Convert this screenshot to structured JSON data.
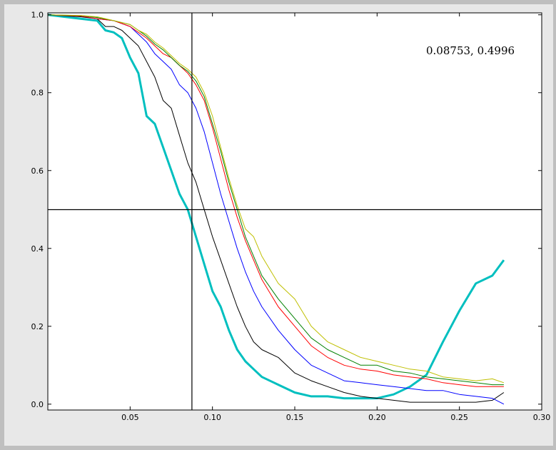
{
  "readout": "0.08753, 0.4996",
  "chart_data": {
    "type": "line",
    "xlim": [
      0.0,
      0.3
    ],
    "ylim": [
      -0.015,
      1.005
    ],
    "x_ticks": [
      0.05,
      0.1,
      0.15,
      0.2,
      0.25,
      0.3
    ],
    "y_ticks": [
      0.0,
      0.2,
      0.4,
      0.6,
      0.8,
      1.0
    ],
    "x_tick_labels": [
      "0.05",
      "0.10",
      "0.15",
      "0.20",
      "0.25",
      "0.30"
    ],
    "y_tick_labels": [
      "0.0",
      "0.2",
      "0.4",
      "0.6",
      "0.8",
      "1.0"
    ],
    "grid": false,
    "crosshair": {
      "x": 0.08753,
      "y": 0.4996
    },
    "series": [
      {
        "color": "#00bfbf",
        "width": 3,
        "x": [
          0.0,
          0.02,
          0.03,
          0.035,
          0.04,
          0.045,
          0.05,
          0.055,
          0.06,
          0.065,
          0.07,
          0.075,
          0.08,
          0.085,
          0.09,
          0.095,
          0.1,
          0.105,
          0.11,
          0.115,
          0.12,
          0.125,
          0.13,
          0.14,
          0.15,
          0.16,
          0.17,
          0.18,
          0.19,
          0.2,
          0.21,
          0.22,
          0.23,
          0.24,
          0.25,
          0.26,
          0.27,
          0.277
        ],
        "y": [
          1.0,
          0.99,
          0.985,
          0.96,
          0.955,
          0.94,
          0.89,
          0.85,
          0.74,
          0.72,
          0.66,
          0.6,
          0.54,
          0.5,
          0.43,
          0.36,
          0.29,
          0.25,
          0.19,
          0.14,
          0.11,
          0.09,
          0.07,
          0.05,
          0.03,
          0.02,
          0.02,
          0.015,
          0.015,
          0.015,
          0.025,
          0.045,
          0.075,
          0.16,
          0.24,
          0.31,
          0.33,
          0.37
        ]
      },
      {
        "color": "#000000",
        "width": 1,
        "x": [
          0.0,
          0.02,
          0.03,
          0.035,
          0.04,
          0.045,
          0.05,
          0.055,
          0.06,
          0.065,
          0.07,
          0.075,
          0.08,
          0.085,
          0.09,
          0.095,
          0.1,
          0.105,
          0.11,
          0.115,
          0.12,
          0.125,
          0.13,
          0.14,
          0.15,
          0.16,
          0.17,
          0.18,
          0.19,
          0.2,
          0.21,
          0.22,
          0.23,
          0.24,
          0.25,
          0.26,
          0.27,
          0.277
        ],
        "y": [
          1.0,
          0.995,
          0.99,
          0.97,
          0.97,
          0.96,
          0.94,
          0.92,
          0.88,
          0.84,
          0.78,
          0.76,
          0.69,
          0.62,
          0.57,
          0.5,
          0.43,
          0.37,
          0.31,
          0.25,
          0.2,
          0.16,
          0.14,
          0.12,
          0.08,
          0.06,
          0.045,
          0.03,
          0.02,
          0.015,
          0.01,
          0.005,
          0.005,
          0.005,
          0.005,
          0.005,
          0.01,
          0.03
        ]
      },
      {
        "color": "#0000ff",
        "width": 1,
        "x": [
          0.0,
          0.02,
          0.03,
          0.04,
          0.05,
          0.055,
          0.06,
          0.065,
          0.07,
          0.075,
          0.08,
          0.085,
          0.09,
          0.095,
          0.1,
          0.105,
          0.11,
          0.115,
          0.12,
          0.125,
          0.13,
          0.14,
          0.15,
          0.16,
          0.17,
          0.18,
          0.19,
          0.2,
          0.21,
          0.22,
          0.23,
          0.24,
          0.25,
          0.26,
          0.27,
          0.277
        ],
        "y": [
          1.0,
          0.997,
          0.99,
          0.985,
          0.97,
          0.95,
          0.93,
          0.9,
          0.88,
          0.86,
          0.82,
          0.8,
          0.76,
          0.7,
          0.62,
          0.54,
          0.47,
          0.4,
          0.34,
          0.29,
          0.25,
          0.19,
          0.14,
          0.1,
          0.08,
          0.06,
          0.055,
          0.05,
          0.045,
          0.04,
          0.035,
          0.035,
          0.025,
          0.02,
          0.015,
          0.0
        ]
      },
      {
        "color": "#ff0000",
        "width": 1,
        "x": [
          0.0,
          0.02,
          0.03,
          0.04,
          0.05,
          0.055,
          0.06,
          0.065,
          0.07,
          0.075,
          0.08,
          0.085,
          0.09,
          0.095,
          0.1,
          0.105,
          0.11,
          0.115,
          0.12,
          0.125,
          0.13,
          0.14,
          0.15,
          0.16,
          0.17,
          0.18,
          0.19,
          0.2,
          0.21,
          0.22,
          0.23,
          0.24,
          0.25,
          0.26,
          0.27,
          0.277
        ],
        "y": [
          1.0,
          0.997,
          0.99,
          0.985,
          0.97,
          0.955,
          0.94,
          0.92,
          0.9,
          0.89,
          0.87,
          0.85,
          0.82,
          0.78,
          0.71,
          0.63,
          0.55,
          0.48,
          0.42,
          0.37,
          0.32,
          0.25,
          0.2,
          0.15,
          0.12,
          0.1,
          0.09,
          0.085,
          0.075,
          0.07,
          0.065,
          0.055,
          0.05,
          0.045,
          0.045,
          0.045
        ]
      },
      {
        "color": "#008000",
        "width": 1,
        "x": [
          0.0,
          0.02,
          0.03,
          0.04,
          0.05,
          0.055,
          0.06,
          0.065,
          0.07,
          0.075,
          0.08,
          0.085,
          0.09,
          0.095,
          0.1,
          0.105,
          0.11,
          0.115,
          0.12,
          0.125,
          0.13,
          0.14,
          0.15,
          0.16,
          0.17,
          0.18,
          0.19,
          0.2,
          0.21,
          0.22,
          0.23,
          0.24,
          0.25,
          0.26,
          0.27,
          0.277
        ],
        "y": [
          1.0,
          0.998,
          0.993,
          0.985,
          0.975,
          0.96,
          0.945,
          0.925,
          0.91,
          0.89,
          0.87,
          0.855,
          0.83,
          0.79,
          0.72,
          0.65,
          0.57,
          0.5,
          0.43,
          0.38,
          0.33,
          0.27,
          0.22,
          0.17,
          0.14,
          0.12,
          0.1,
          0.1,
          0.085,
          0.08,
          0.07,
          0.065,
          0.06,
          0.055,
          0.05,
          0.05
        ]
      },
      {
        "color": "#bfbf00",
        "width": 1,
        "x": [
          0.0,
          0.02,
          0.03,
          0.04,
          0.05,
          0.055,
          0.06,
          0.065,
          0.07,
          0.075,
          0.08,
          0.085,
          0.09,
          0.095,
          0.1,
          0.105,
          0.11,
          0.115,
          0.12,
          0.125,
          0.13,
          0.14,
          0.15,
          0.16,
          0.17,
          0.18,
          0.19,
          0.2,
          0.21,
          0.22,
          0.23,
          0.24,
          0.25,
          0.26,
          0.27,
          0.277
        ],
        "y": [
          1.0,
          0.998,
          0.995,
          0.985,
          0.975,
          0.96,
          0.95,
          0.93,
          0.915,
          0.895,
          0.875,
          0.86,
          0.84,
          0.8,
          0.74,
          0.66,
          0.58,
          0.51,
          0.45,
          0.43,
          0.38,
          0.31,
          0.27,
          0.2,
          0.16,
          0.14,
          0.12,
          0.11,
          0.1,
          0.09,
          0.085,
          0.07,
          0.065,
          0.06,
          0.065,
          0.055
        ]
      }
    ]
  }
}
